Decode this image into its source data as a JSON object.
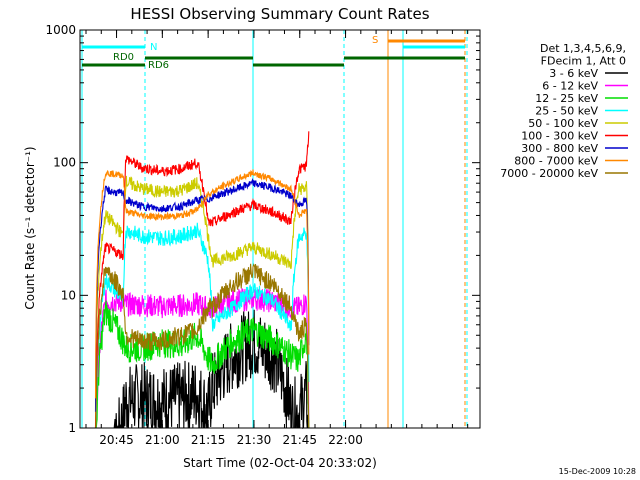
{
  "chart_data": {
    "type": "line",
    "title": "HESSI Observing Summary Count Rates",
    "xlabel": "Start Time (02-Oct-04 20:33:02)",
    "ylabel": "Count Rate (s⁻¹ detector⁻¹)",
    "yscale": "log",
    "ylim": [
      1,
      1000
    ],
    "xlim": [
      0,
      7860
    ],
    "x_unit": "seconds after 02-Oct-04 20:33:02",
    "x_ticks": [
      {
        "label": "20:45",
        "x": 718
      },
      {
        "label": "21:00",
        "x": 1618
      },
      {
        "label": "21:15",
        "x": 2518
      },
      {
        "label": "21:30",
        "x": 3418
      },
      {
        "label": "21:45",
        "x": 4318
      },
      {
        "label": "22:00",
        "x": 5218
      }
    ],
    "y_ticks": [
      {
        "label": "1",
        "y": 1
      },
      {
        "label": "10",
        "y": 10
      },
      {
        "label": "100",
        "y": 100
      },
      {
        "label": "1000",
        "y": 1000
      }
    ],
    "legend": {
      "position": "right",
      "header": [
        "Det 1,3,4,5,6,9,",
        "FDecim 1, Att 0"
      ]
    },
    "series": [
      {
        "name": "3 - 6 keV",
        "color": "#000000",
        "x": [
          0,
          500,
          850,
          900,
          1200,
          1600,
          2000,
          2300,
          2520,
          2600,
          3000,
          3400,
          3800,
          4150,
          4300,
          4450,
          4500
        ],
        "y": [
          0,
          0,
          1.2,
          1.6,
          1.7,
          1.6,
          1.7,
          1.8,
          1.3,
          2,
          3.5,
          4.5,
          3.5,
          1.3,
          1.3,
          1.8,
          0
        ]
      },
      {
        "name": "6 - 12 keV",
        "color": "#ff00ff",
        "x": [
          0,
          300,
          500,
          850,
          900,
          1200,
          1600,
          2000,
          2300,
          2520,
          2600,
          3000,
          3400,
          3800,
          4150,
          4300,
          4450,
          4500
        ],
        "y": [
          0,
          0,
          9,
          9,
          8.5,
          8.5,
          8.2,
          8.4,
          8.6,
          8,
          8,
          9,
          9.5,
          9,
          8,
          8,
          9,
          0
        ]
      },
      {
        "name": "12 - 25 keV",
        "color": "#00dd00",
        "x": [
          0,
          300,
          500,
          850,
          900,
          1200,
          1600,
          2000,
          2300,
          2520,
          2600,
          3000,
          3400,
          3800,
          4150,
          4300,
          4450,
          4500
        ],
        "y": [
          0,
          0,
          7.5,
          4.5,
          4,
          4,
          4.4,
          4.2,
          5,
          3.3,
          3,
          4.5,
          5.5,
          4.5,
          3.5,
          3.2,
          5,
          0
        ]
      },
      {
        "name": "25 - 50 keV",
        "color": "#00ffff",
        "x": [
          0,
          300,
          500,
          850,
          900,
          1200,
          1600,
          2000,
          2300,
          2520,
          2600,
          3000,
          3400,
          3800,
          4150,
          4300,
          4450,
          4500
        ],
        "y": [
          0,
          0,
          13,
          9,
          31,
          28,
          27,
          28,
          31,
          18,
          6,
          8,
          11,
          9,
          5.5,
          27,
          30,
          0
        ]
      },
      {
        "name": "50 - 100 keV",
        "color": "#cccc00",
        "x": [
          0,
          300,
          500,
          850,
          900,
          1200,
          1600,
          2000,
          2300,
          2520,
          2600,
          3000,
          3400,
          3800,
          4150,
          4300,
          4450,
          4500
        ],
        "y": [
          0,
          0,
          40,
          28,
          72,
          64,
          60,
          62,
          70,
          27,
          18,
          20,
          23,
          20,
          17,
          63,
          65,
          0
        ]
      },
      {
        "name": "100 - 300 keV",
        "color": "#ff0000",
        "x": [
          0,
          300,
          500,
          850,
          900,
          1200,
          1600,
          2000,
          2300,
          2520,
          2600,
          3000,
          3400,
          3800,
          4150,
          4300,
          4450,
          4500
        ],
        "y": [
          0,
          0,
          23,
          20,
          108,
          92,
          86,
          90,
          100,
          35,
          35,
          42,
          48,
          42,
          36,
          88,
          95,
          170
        ]
      },
      {
        "name": "300 - 800 keV",
        "color": "#0000cc",
        "x": [
          0,
          300,
          500,
          850,
          900,
          1200,
          1600,
          2000,
          2300,
          2520,
          2600,
          3000,
          3400,
          3800,
          4150,
          4300,
          4450,
          4500
        ],
        "y": [
          0,
          0,
          62,
          58,
          52,
          47,
          45,
          47,
          52,
          53,
          55,
          62,
          70,
          64,
          56,
          48,
          52,
          0
        ]
      },
      {
        "name": "800 - 7000 keV",
        "color": "#ff8800",
        "x": [
          0,
          300,
          500,
          850,
          900,
          1200,
          1600,
          2000,
          2300,
          2520,
          2600,
          3000,
          3400,
          3800,
          4150,
          4300,
          4450,
          4500
        ],
        "y": [
          0,
          0,
          84,
          80,
          43,
          40,
          39,
          40,
          44,
          58,
          60,
          72,
          84,
          74,
          63,
          40,
          44,
          0
        ]
      },
      {
        "name": "7000 - 20000 keV",
        "color": "#997700",
        "x": [
          0,
          300,
          500,
          850,
          900,
          1200,
          1600,
          2000,
          2300,
          2520,
          2600,
          3000,
          3400,
          3800,
          4150,
          4300,
          4450,
          4500
        ],
        "y": [
          0,
          0,
          16,
          10,
          5,
          4.5,
          4.5,
          5,
          5.5,
          8,
          8,
          12,
          15,
          12,
          8,
          5,
          6,
          0
        ]
      }
    ],
    "annotations": [
      {
        "label": "N",
        "color": "#00ffff",
        "x": 780
      },
      {
        "label": "S",
        "color": "#ff8800",
        "x": 4850
      },
      {
        "label": "RD0",
        "color": "#006600",
        "x": 350
      },
      {
        "label": "RD6",
        "color": "#006600",
        "x": 800
      }
    ],
    "timestamp": "15-Dec-2009 10:28"
  }
}
